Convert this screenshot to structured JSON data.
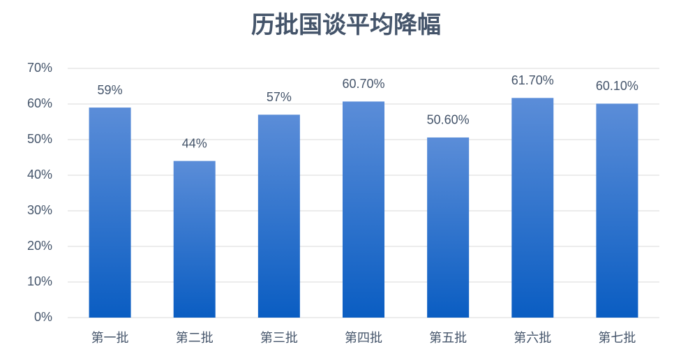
{
  "chart_data": {
    "type": "bar",
    "title": "历批国谈平均降幅",
    "categories": [
      "第一批",
      "第二批",
      "第三批",
      "第四批",
      "第五批",
      "第六批",
      "第七批"
    ],
    "values": [
      59,
      44,
      57,
      60.7,
      50.6,
      61.7,
      60.1
    ],
    "value_labels": [
      "59%",
      "44%",
      "57%",
      "60.70%",
      "50.60%",
      "61.70%",
      "60.10%"
    ],
    "gradient": [
      "#5b8dd8",
      "#0a5dc2"
    ],
    "ylim": [
      0,
      70
    ],
    "yticks": [
      {
        "value": 0,
        "label": "0%"
      },
      {
        "value": 10,
        "label": "10%"
      },
      {
        "value": 20,
        "label": "20%"
      },
      {
        "value": 30,
        "label": "30%"
      },
      {
        "value": 40,
        "label": "40%"
      },
      {
        "value": 50,
        "label": "50%"
      },
      {
        "value": 60,
        "label": "60%"
      },
      {
        "value": 70,
        "label": "70%"
      }
    ],
    "grid": true
  }
}
